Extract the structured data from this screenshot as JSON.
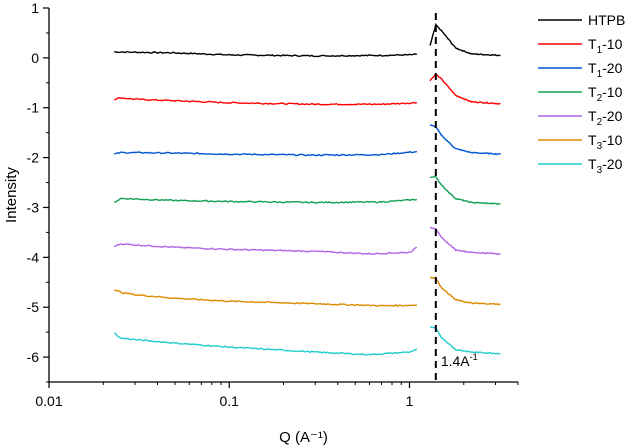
{
  "chart_data": {
    "type": "line",
    "title": "",
    "xlabel": "Q (A⁻¹)",
    "ylabel": "Intensity",
    "xscale": "log",
    "xlim": [
      0.01,
      4
    ],
    "ylim": [
      -6.5,
      1
    ],
    "xticks": [
      {
        "value": 0.01,
        "label": "0.01"
      },
      {
        "value": 0.1,
        "label": "0.1"
      },
      {
        "value": 1,
        "label": "1"
      }
    ],
    "yticks": [
      {
        "value": 1,
        "label": "1"
      },
      {
        "value": 0,
        "label": "0"
      },
      {
        "value": -1,
        "label": "-1"
      },
      {
        "value": -2,
        "label": "-2"
      },
      {
        "value": -3,
        "label": "-3"
      },
      {
        "value": -4,
        "label": "-4"
      },
      {
        "value": -5,
        "label": "-5"
      },
      {
        "value": -6,
        "label": "-6"
      }
    ],
    "annotation": {
      "x": 1.4,
      "label": "1.4A",
      "sup": "-1",
      "style": "dashed-vertical-line"
    },
    "legend_position": "right",
    "series": [
      {
        "name": "HTPB",
        "base": "HTPB",
        "sub": "",
        "suffix": "",
        "color": "#000000",
        "low": [
          [
            0.023,
            0.12
          ],
          [
            0.05,
            0.1
          ],
          [
            0.1,
            0.06
          ],
          [
            0.3,
            0.04
          ],
          [
            0.7,
            0.05
          ],
          [
            1.0,
            0.06
          ],
          [
            1.1,
            0.07
          ]
        ],
        "high": [
          [
            1.3,
            0.25
          ],
          [
            1.4,
            0.66
          ],
          [
            1.5,
            0.55
          ],
          [
            1.8,
            0.2
          ],
          [
            2.2,
            0.08
          ],
          [
            3.2,
            0.05
          ]
        ]
      },
      {
        "name": "T1-10",
        "base": "T",
        "sub": "1",
        "suffix": "-10",
        "color": "#ff0000",
        "low": [
          [
            0.023,
            -0.83
          ],
          [
            0.025,
            -0.8
          ],
          [
            0.03,
            -0.83
          ],
          [
            0.05,
            -0.86
          ],
          [
            0.1,
            -0.9
          ],
          [
            0.3,
            -0.93
          ],
          [
            0.7,
            -0.93
          ],
          [
            1.1,
            -0.9
          ]
        ],
        "high": [
          [
            1.3,
            -0.45
          ],
          [
            1.4,
            -0.33
          ],
          [
            1.5,
            -0.42
          ],
          [
            1.8,
            -0.75
          ],
          [
            2.2,
            -0.88
          ],
          [
            3.2,
            -0.92
          ]
        ]
      },
      {
        "name": "T1-20",
        "base": "T",
        "sub": "1",
        "suffix": "-20",
        "color": "#0055d4",
        "low": [
          [
            0.023,
            -1.93
          ],
          [
            0.025,
            -1.9
          ],
          [
            0.03,
            -1.9
          ],
          [
            0.05,
            -1.91
          ],
          [
            0.1,
            -1.93
          ],
          [
            0.3,
            -1.95
          ],
          [
            0.7,
            -1.94
          ],
          [
            1.1,
            -1.88
          ]
        ],
        "high": [
          [
            1.3,
            -1.35
          ],
          [
            1.4,
            -1.38
          ],
          [
            1.5,
            -1.55
          ],
          [
            1.8,
            -1.82
          ],
          [
            2.2,
            -1.9
          ],
          [
            3.2,
            -1.93
          ]
        ]
      },
      {
        "name": "T2-10",
        "base": "T",
        "sub": "2",
        "suffix": "-10",
        "color": "#12a054",
        "low": [
          [
            0.023,
            -2.9
          ],
          [
            0.025,
            -2.82
          ],
          [
            0.03,
            -2.83
          ],
          [
            0.05,
            -2.86
          ],
          [
            0.1,
            -2.88
          ],
          [
            0.3,
            -2.9
          ],
          [
            0.7,
            -2.89
          ],
          [
            1.1,
            -2.84
          ]
        ],
        "high": [
          [
            1.3,
            -2.4
          ],
          [
            1.4,
            -2.38
          ],
          [
            1.5,
            -2.55
          ],
          [
            1.8,
            -2.82
          ],
          [
            2.2,
            -2.9
          ],
          [
            3.2,
            -2.93
          ]
        ]
      },
      {
        "name": "T2-20",
        "base": "T",
        "sub": "2",
        "suffix": "-20",
        "color": "#b066e8",
        "low": [
          [
            0.023,
            -3.78
          ],
          [
            0.025,
            -3.73
          ],
          [
            0.03,
            -3.75
          ],
          [
            0.05,
            -3.8
          ],
          [
            0.1,
            -3.84
          ],
          [
            0.3,
            -3.88
          ],
          [
            0.6,
            -3.93
          ],
          [
            1.0,
            -3.9
          ],
          [
            1.1,
            -3.8
          ]
        ],
        "high": [
          [
            1.3,
            -3.4
          ],
          [
            1.4,
            -3.42
          ],
          [
            1.5,
            -3.6
          ],
          [
            1.8,
            -3.85
          ],
          [
            2.2,
            -3.9
          ],
          [
            3.2,
            -3.93
          ]
        ]
      },
      {
        "name": "T3-10",
        "base": "T",
        "sub": "3",
        "suffix": "-10",
        "color": "#dd8b00",
        "low": [
          [
            0.023,
            -4.65
          ],
          [
            0.025,
            -4.7
          ],
          [
            0.03,
            -4.75
          ],
          [
            0.05,
            -4.82
          ],
          [
            0.1,
            -4.88
          ],
          [
            0.3,
            -4.93
          ],
          [
            0.7,
            -4.97
          ],
          [
            1.1,
            -4.96
          ]
        ],
        "high": [
          [
            1.3,
            -4.4
          ],
          [
            1.4,
            -4.42
          ],
          [
            1.5,
            -4.6
          ],
          [
            1.8,
            -4.85
          ],
          [
            2.2,
            -4.92
          ],
          [
            3.2,
            -4.94
          ]
        ]
      },
      {
        "name": "T3-20",
        "base": "T",
        "sub": "3",
        "suffix": "-20",
        "color": "#22cccc",
        "low": [
          [
            0.023,
            -5.52
          ],
          [
            0.025,
            -5.62
          ],
          [
            0.03,
            -5.65
          ],
          [
            0.05,
            -5.72
          ],
          [
            0.1,
            -5.8
          ],
          [
            0.3,
            -5.9
          ],
          [
            0.6,
            -5.95
          ],
          [
            1.0,
            -5.9
          ],
          [
            1.1,
            -5.84
          ]
        ],
        "high": [
          [
            1.3,
            -5.4
          ],
          [
            1.4,
            -5.42
          ],
          [
            1.5,
            -5.6
          ],
          [
            1.8,
            -5.85
          ],
          [
            2.2,
            -5.9
          ],
          [
            3.2,
            -5.93
          ]
        ]
      }
    ]
  }
}
